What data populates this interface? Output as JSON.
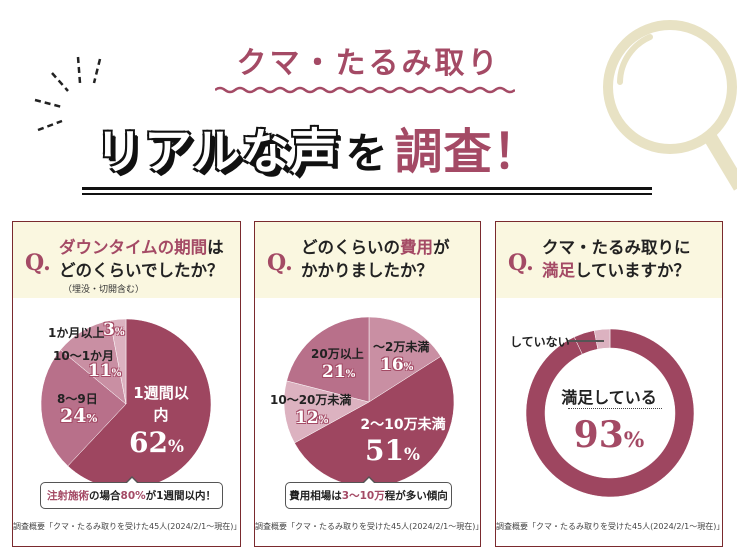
{
  "header": {
    "subtitle": "クマ・たるみ取り",
    "title_part1": "リアルな声",
    "title_part2": "を",
    "title_part3": "調査！"
  },
  "colors": {
    "accent": "#a44a65",
    "slice_dark": "#9e4660",
    "slice_mid": "#b8708a",
    "slice_light": "#c98fa3",
    "slice_lightest": "#dcb2c0",
    "question_band": "#faf7e0",
    "border": "#7a2a2e",
    "lens": "#e8e2c4"
  },
  "footer_note": "調査概要「クマ・たるみ取りを受けた45人(2024/2/1〜現在)」",
  "cards": [
    {
      "q_mark": "Q.",
      "question_highlight": "ダウンタイムの期間",
      "question_rest1": "は",
      "question_line2": "どのくらいでしたか？",
      "note": "（埋没・切開含む）",
      "callout_h1": "注射施術",
      "callout_t1": "の場合",
      "callout_h2": "80%",
      "callout_t2": "が1週間以内！"
    },
    {
      "q_mark": "Q.",
      "question_line1a": "どのくらいの",
      "question_highlight": "費用",
      "question_line1b": "が",
      "question_line2": "かかりましたか？",
      "callout_t1": "費用相場は",
      "callout_h": "3〜10万",
      "callout_t2": "程が多い傾向"
    },
    {
      "q_mark": "Q.",
      "question_line1": "クマ・たるみ取りに",
      "question_highlight": "満足",
      "question_line2": "していますか？"
    }
  ],
  "chart_data": [
    {
      "type": "pie",
      "categories": [
        "1週間以内",
        "8〜9日",
        "10〜1か月",
        "1か月以上"
      ],
      "values": [
        62,
        24,
        11,
        3
      ],
      "unit": "%"
    },
    {
      "type": "pie",
      "categories": [
        "〜2万未満",
        "2〜10万未満",
        "10〜20万未満",
        "20万以上"
      ],
      "values": [
        16,
        51,
        12,
        21
      ],
      "unit": "%"
    },
    {
      "type": "donut",
      "categories": [
        "満足している",
        "していない"
      ],
      "values": [
        93,
        7
      ],
      "unit": "%"
    }
  ]
}
